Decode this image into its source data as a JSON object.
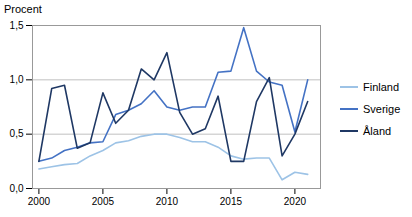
{
  "chart_data": {
    "type": "line",
    "ylabel": "Procent",
    "x": [
      2000,
      2001,
      2002,
      2003,
      2004,
      2005,
      2006,
      2007,
      2008,
      2009,
      2010,
      2011,
      2012,
      2013,
      2014,
      2015,
      2016,
      2017,
      2018,
      2019,
      2020,
      2021
    ],
    "series": [
      {
        "name": "Finland",
        "color": "#9dc3e6",
        "values": [
          0.18,
          0.2,
          0.22,
          0.23,
          0.3,
          0.35,
          0.42,
          0.44,
          0.48,
          0.5,
          0.5,
          0.47,
          0.43,
          0.43,
          0.38,
          0.3,
          0.27,
          0.28,
          0.28,
          0.08,
          0.15,
          0.13
        ]
      },
      {
        "name": "Sverige",
        "color": "#4472c4",
        "values": [
          0.25,
          0.28,
          0.35,
          0.38,
          0.42,
          0.43,
          0.68,
          0.72,
          0.78,
          0.9,
          0.75,
          0.72,
          0.75,
          0.75,
          1.07,
          1.08,
          1.48,
          1.08,
          0.98,
          0.95,
          0.52,
          1.0
        ]
      },
      {
        "name": "Åland",
        "color": "#1f3864",
        "values": [
          0.25,
          0.92,
          0.95,
          0.37,
          0.42,
          0.88,
          0.6,
          0.72,
          1.1,
          1.0,
          1.25,
          0.7,
          0.5,
          0.55,
          0.85,
          0.25,
          0.25,
          0.8,
          1.02,
          0.3,
          0.5,
          0.8
        ]
      }
    ],
    "xlim": [
      1999.5,
      2022.0
    ],
    "xticks": [
      2000,
      2005,
      2010,
      2015,
      2020
    ],
    "ylim": [
      0.0,
      1.5
    ],
    "yticks": [
      {
        "value": 0.0,
        "label": "0,0"
      },
      {
        "value": 0.5,
        "label": "0,5"
      },
      {
        "value": 1.0,
        "label": "1,0"
      },
      {
        "value": 1.5,
        "label": "1,5"
      }
    ],
    "grid": true,
    "legend": "right"
  }
}
